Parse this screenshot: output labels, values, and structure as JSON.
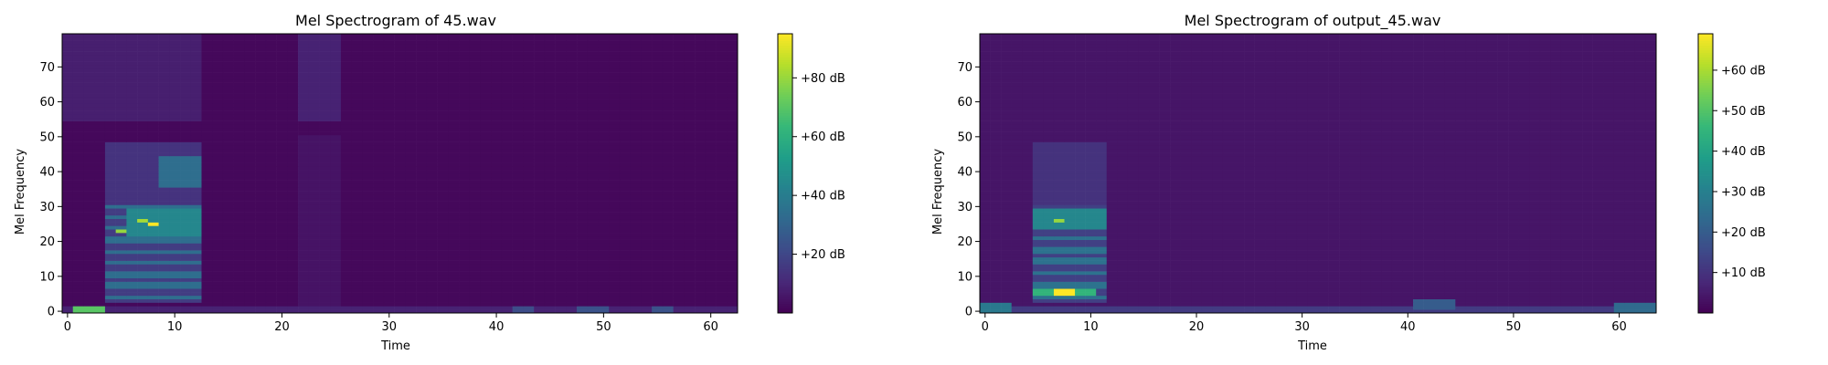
{
  "chart_data": [
    {
      "type": "heatmap",
      "title": "Mel Spectrogram of 45.wav",
      "xlabel": "Time",
      "ylabel": "Mel Frequency",
      "xlim": [
        -0.5,
        62.5
      ],
      "ylim": [
        -0.5,
        79.5
      ],
      "xticks": [
        0,
        10,
        20,
        30,
        40,
        50,
        60
      ],
      "yticks": [
        0,
        10,
        20,
        30,
        40,
        50,
        60,
        70
      ],
      "n_time": 63,
      "n_mel": 80,
      "colormap": "viridis",
      "colorbar": {
        "range": [
          0,
          95
        ],
        "ticks": [
          20,
          40,
          60,
          80
        ],
        "tick_labels": [
          "+20 dB",
          "+40 dB",
          "+60 dB",
          "+80 dB"
        ]
      },
      "features": [
        {
          "kind": "floor",
          "level": 2
        },
        {
          "kind": "box",
          "t": [
            4,
            12
          ],
          "m": [
            5,
            48
          ],
          "level": 14
        },
        {
          "kind": "harmonics",
          "t": [
            4,
            12
          ],
          "m": [
            3,
            30
          ],
          "spacing": 3.3,
          "level": 34
        },
        {
          "kind": "box",
          "t": [
            9,
            12
          ],
          "m": [
            36,
            44
          ],
          "level": 34
        },
        {
          "kind": "box",
          "t": [
            6,
            12
          ],
          "m": [
            22,
            29
          ],
          "level": 44
        },
        {
          "kind": "spot",
          "t": [
            8,
            8
          ],
          "m": [
            25,
            25
          ],
          "level": 95
        },
        {
          "kind": "spot",
          "t": [
            7,
            7
          ],
          "m": [
            26,
            26
          ],
          "level": 82
        },
        {
          "kind": "spot",
          "t": [
            5,
            5
          ],
          "m": [
            23,
            23
          ],
          "level": 80
        },
        {
          "kind": "box",
          "t": [
            0,
            12
          ],
          "m": [
            55,
            79
          ],
          "level": 8
        },
        {
          "kind": "box",
          "t": [
            22,
            25
          ],
          "m": [
            55,
            79
          ],
          "level": 9
        },
        {
          "kind": "box",
          "t": [
            22,
            25
          ],
          "m": [
            0,
            50
          ],
          "level": 5
        },
        {
          "kind": "box",
          "t": [
            0,
            62
          ],
          "m": [
            0,
            1
          ],
          "level": 9
        },
        {
          "kind": "box",
          "t": [
            1,
            3
          ],
          "m": [
            0,
            1
          ],
          "level": 70
        },
        {
          "kind": "box",
          "t": [
            42,
            43
          ],
          "m": [
            0,
            1
          ],
          "level": 22
        },
        {
          "kind": "box",
          "t": [
            48,
            50
          ],
          "m": [
            0,
            1
          ],
          "level": 24
        },
        {
          "kind": "box",
          "t": [
            55,
            56
          ],
          "m": [
            0,
            1
          ],
          "level": 24
        }
      ]
    },
    {
      "type": "heatmap",
      "title": "Mel Spectrogram of output_45.wav",
      "xlabel": "Time",
      "ylabel": "Mel Frequency",
      "xlim": [
        -0.5,
        63.5
      ],
      "ylim": [
        -0.5,
        79.5
      ],
      "xticks": [
        0,
        10,
        20,
        30,
        40,
        50,
        60
      ],
      "yticks": [
        0,
        10,
        20,
        30,
        40,
        50,
        60,
        70
      ],
      "n_time": 64,
      "n_mel": 80,
      "colormap": "viridis",
      "colorbar": {
        "range": [
          0,
          69
        ],
        "ticks": [
          10,
          20,
          30,
          40,
          50,
          60
        ],
        "tick_labels": [
          "+10 dB",
          "+20 dB",
          "+30 dB",
          "+40 dB",
          "+50 dB",
          "+60 dB"
        ]
      },
      "features": [
        {
          "kind": "floor",
          "level": 4
        },
        {
          "kind": "box",
          "t": [
            5,
            11
          ],
          "m": [
            5,
            48
          ],
          "level": 10
        },
        {
          "kind": "harmonics",
          "t": [
            5,
            11
          ],
          "m": [
            3,
            30
          ],
          "spacing": 3.4,
          "level": 26
        },
        {
          "kind": "box",
          "t": [
            5,
            11
          ],
          "m": [
            24,
            29
          ],
          "level": 32
        },
        {
          "kind": "spot",
          "t": [
            7,
            7
          ],
          "m": [
            26,
            26
          ],
          "level": 58
        },
        {
          "kind": "box",
          "t": [
            5,
            10
          ],
          "m": [
            5,
            6
          ],
          "level": 45
        },
        {
          "kind": "box",
          "t": [
            7,
            8
          ],
          "m": [
            5,
            6
          ],
          "level": 69
        },
        {
          "kind": "box",
          "t": [
            0,
            63
          ],
          "m": [
            0,
            1
          ],
          "level": 12
        },
        {
          "kind": "box",
          "t": [
            0,
            2
          ],
          "m": [
            0,
            2
          ],
          "level": 28
        },
        {
          "kind": "box",
          "t": [
            41,
            44
          ],
          "m": [
            1,
            3
          ],
          "level": 20
        },
        {
          "kind": "box",
          "t": [
            60,
            63
          ],
          "m": [
            0,
            2
          ],
          "level": 24
        }
      ]
    }
  ]
}
